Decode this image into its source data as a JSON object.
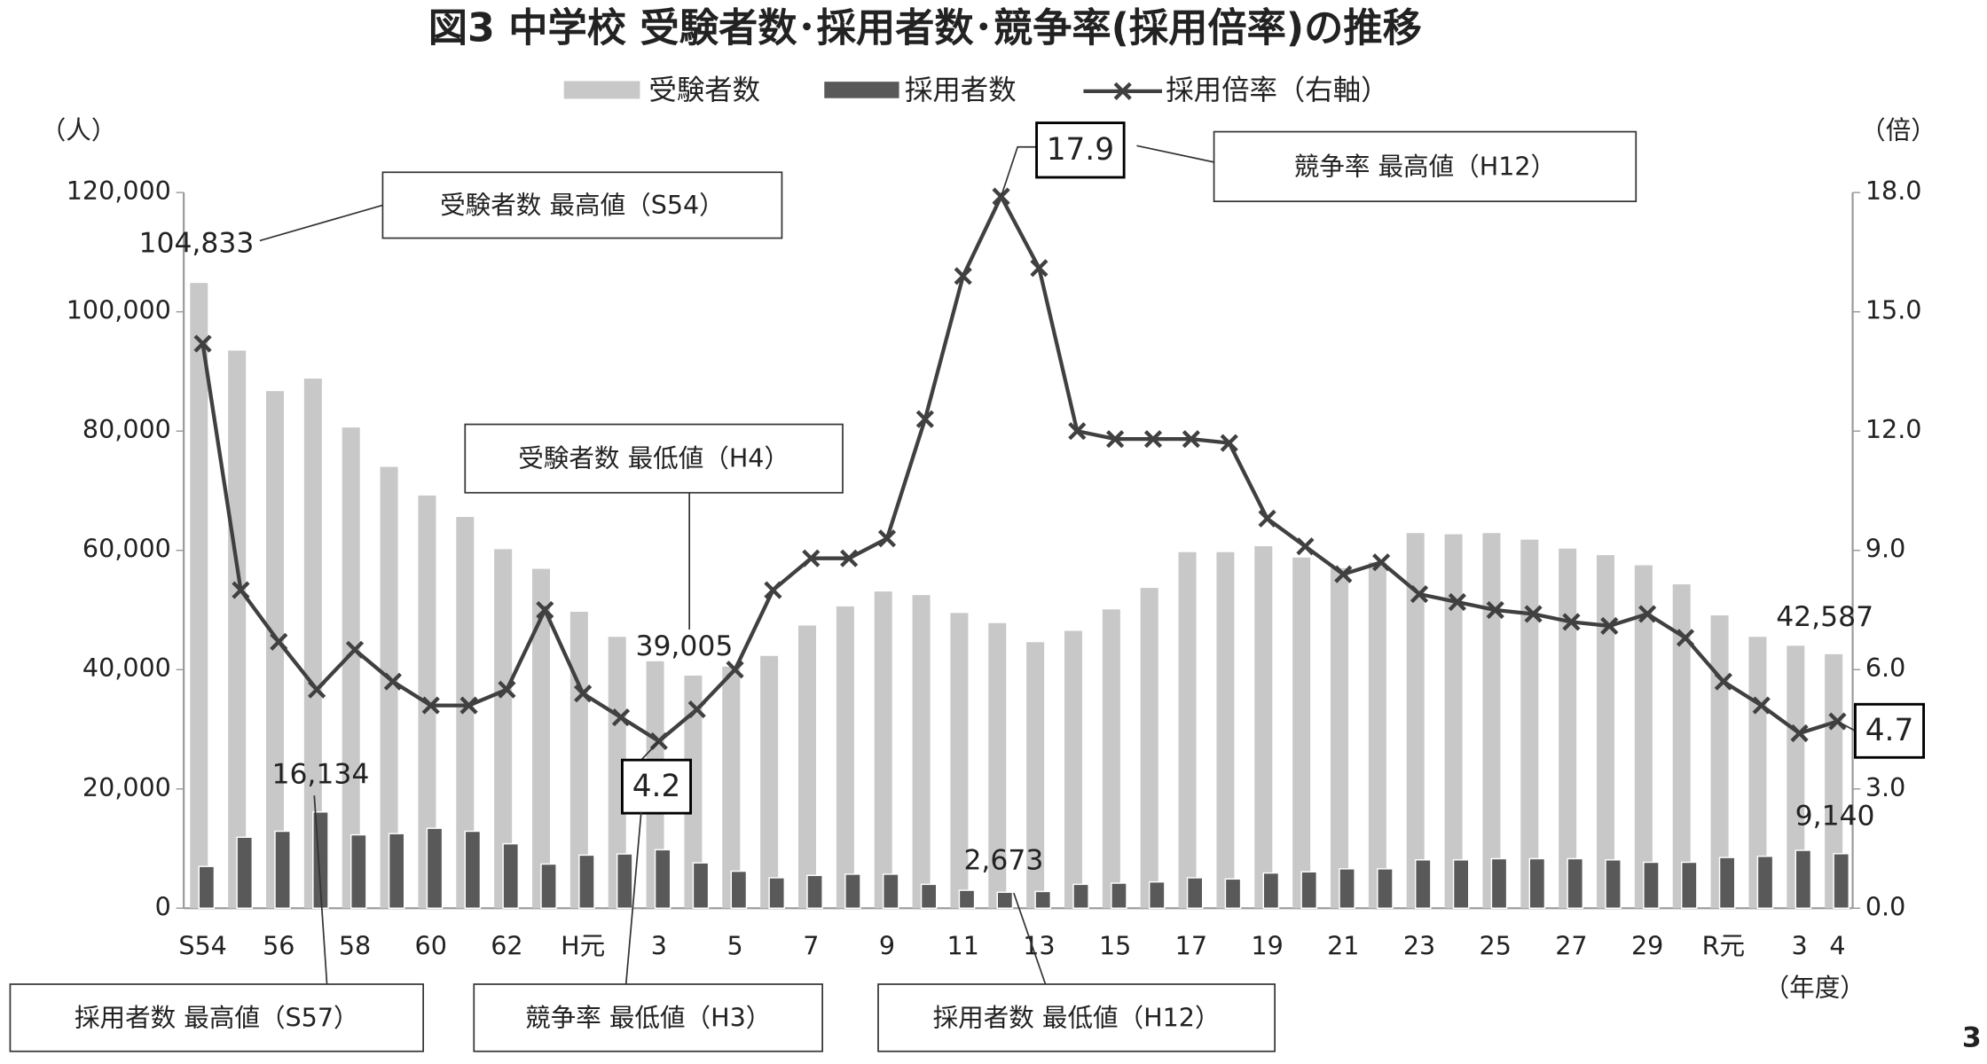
{
  "chart_data": {
    "type": "bar_line",
    "title": "図3 中学校 受験者数･採用者数･競争率(採用倍率)の推移",
    "y_label": "（人）",
    "y2_label": "（倍）",
    "x_label": "（年度）",
    "page_number": "3",
    "categories": [
      "S54",
      null,
      "56",
      null,
      "58",
      null,
      "60",
      null,
      "62",
      null,
      "H元",
      null,
      "3",
      null,
      "5",
      null,
      "7",
      null,
      "9",
      null,
      "11",
      null,
      "13",
      null,
      "15",
      null,
      "17",
      null,
      "19",
      null,
      "21",
      null,
      "23",
      null,
      "25",
      null,
      "27",
      null,
      "29",
      null,
      "R元",
      null,
      "3",
      "4"
    ],
    "ylim": [
      0,
      120000
    ],
    "yticks": [
      0,
      {
        "value": 20000,
        "label": "20,000"
      },
      {
        "value": 40000,
        "label": "40,000"
      },
      {
        "value": 60000,
        "label": "60,000"
      },
      {
        "value": 80000,
        "label": "80,000"
      },
      {
        "value": 100000,
        "label": "100,000"
      },
      {
        "value": 120000,
        "label": "120,000"
      }
    ],
    "y2lim": [
      0,
      18
    ],
    "y2ticks": [
      {
        "value": 0,
        "label": "0.0"
      },
      {
        "value": 3,
        "label": "3.0"
      },
      {
        "value": 6,
        "label": "6.0"
      },
      {
        "value": 9,
        "label": "9.0"
      },
      {
        "value": 12,
        "label": "12.0"
      },
      {
        "value": 15,
        "label": "15.0"
      },
      {
        "value": 18,
        "label": "18.0"
      }
    ],
    "series": [
      {
        "name": "受験者数",
        "kind": "bar",
        "color": "#c8c8c8",
        "values": [
          104833,
          93500,
          86700,
          88800,
          80600,
          74000,
          69200,
          65600,
          60200,
          56900,
          49700,
          45500,
          41400,
          39005,
          40500,
          42300,
          47400,
          50600,
          53100,
          52500,
          49500,
          47800,
          44600,
          46500,
          50100,
          53700,
          59700,
          59700,
          60700,
          58800,
          57000,
          58000,
          62900,
          62700,
          62900,
          61800,
          60300,
          59200,
          57500,
          54300,
          49100,
          45500,
          44000,
          42587
        ],
        "value_labels": [
          "104,833",
          null,
          null,
          null,
          null,
          null,
          null,
          null,
          null,
          null,
          null,
          null,
          null,
          "39,005",
          null,
          null,
          null,
          null,
          null,
          null,
          null,
          null,
          null,
          null,
          null,
          null,
          null,
          null,
          null,
          null,
          null,
          null,
          null,
          null,
          null,
          null,
          null,
          null,
          null,
          null,
          null,
          null,
          null,
          "42,587"
        ]
      },
      {
        "name": "採用者数",
        "kind": "bar",
        "color": "#595959",
        "values": [
          7000,
          11900,
          12900,
          16134,
          12300,
          12500,
          13400,
          12900,
          10800,
          7400,
          8900,
          9100,
          9800,
          7600,
          6200,
          5100,
          5500,
          5700,
          5700,
          4000,
          3000,
          2673,
          2800,
          4000,
          4200,
          4400,
          5100,
          4900,
          5900,
          6100,
          6600,
          6600,
          8100,
          8100,
          8300,
          8300,
          8300,
          8100,
          7700,
          7700,
          8500,
          8700,
          9700,
          9140
        ],
        "value_labels": [
          null,
          null,
          null,
          "16,134",
          null,
          null,
          null,
          null,
          null,
          null,
          null,
          null,
          null,
          null,
          null,
          null,
          null,
          null,
          null,
          null,
          null,
          "2,673",
          null,
          null,
          null,
          null,
          null,
          null,
          null,
          null,
          null,
          null,
          null,
          null,
          null,
          null,
          null,
          null,
          null,
          null,
          null,
          null,
          null,
          "9,140"
        ]
      },
      {
        "name": "採用倍率（右軸）",
        "kind": "line",
        "axis": "y2",
        "color": "#404040",
        "values": [
          14.2,
          8.0,
          6.7,
          5.5,
          6.5,
          5.7,
          5.1,
          5.1,
          5.5,
          7.5,
          5.4,
          4.8,
          4.2,
          5.0,
          6.0,
          8.0,
          8.8,
          8.8,
          9.3,
          12.3,
          15.9,
          17.9,
          16.1,
          12.0,
          11.8,
          11.8,
          11.8,
          11.7,
          9.8,
          9.1,
          8.4,
          8.7,
          7.9,
          7.7,
          7.5,
          7.4,
          7.2,
          7.1,
          7.4,
          6.8,
          5.7,
          5.1,
          4.4,
          4.7
        ]
      }
    ],
    "annotations": [
      "受験者数 最高値（S54）",
      "競争率 最高値（H12）",
      "受験者数 最低値（H4）",
      "採用者数 最高値（S57）",
      "競争率 最低値（H3）",
      "採用者数 最低値（H12）"
    ]
  }
}
